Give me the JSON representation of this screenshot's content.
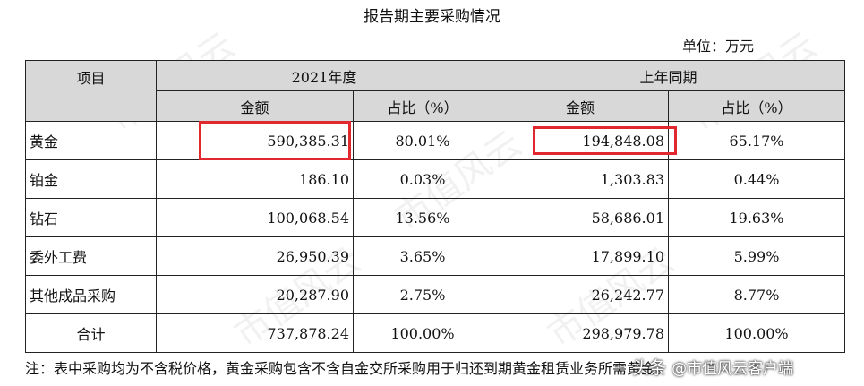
{
  "title": "报告期主要采购情况",
  "unit": "单位：万元",
  "headers": {
    "item": "项目",
    "period_current": "2021年度",
    "period_prior": "上年同期",
    "amount": "金额",
    "share": "占比（%）"
  },
  "rows": [
    {
      "item": "黄金",
      "cur_amount": "590,385.31",
      "cur_share": "80.01%",
      "prior_amount": "194,848.08",
      "prior_share": "65.17%"
    },
    {
      "item": "铂金",
      "cur_amount": "186.10",
      "cur_share": "0.03%",
      "prior_amount": "1,303.83",
      "prior_share": "0.44%"
    },
    {
      "item": "钻石",
      "cur_amount": "100,068.54",
      "cur_share": "13.56%",
      "prior_amount": "58,686.01",
      "prior_share": "19.63%"
    },
    {
      "item": "委外工费",
      "cur_amount": "26,950.39",
      "cur_share": "3.65%",
      "prior_amount": "17,899.10",
      "prior_share": "5.99%"
    },
    {
      "item": "其他成品采购",
      "cur_amount": "20,287.90",
      "cur_share": "2.75%",
      "prior_amount": "26,242.77",
      "prior_share": "8.77%"
    }
  ],
  "total": {
    "item": "合计",
    "cur_amount": "737,878.24",
    "cur_share": "100.00%",
    "prior_amount": "298,979.78",
    "prior_share": "100.00%"
  },
  "note": "注：表中采购均为不含税价格，黄金采购包含不含自金交所采购用于归还到期黄金租赁业务所需黄金。",
  "watermark": {
    "prefix": "头条",
    "handle": "@市值风云客户端"
  },
  "highlight_color": "#e0282e"
}
